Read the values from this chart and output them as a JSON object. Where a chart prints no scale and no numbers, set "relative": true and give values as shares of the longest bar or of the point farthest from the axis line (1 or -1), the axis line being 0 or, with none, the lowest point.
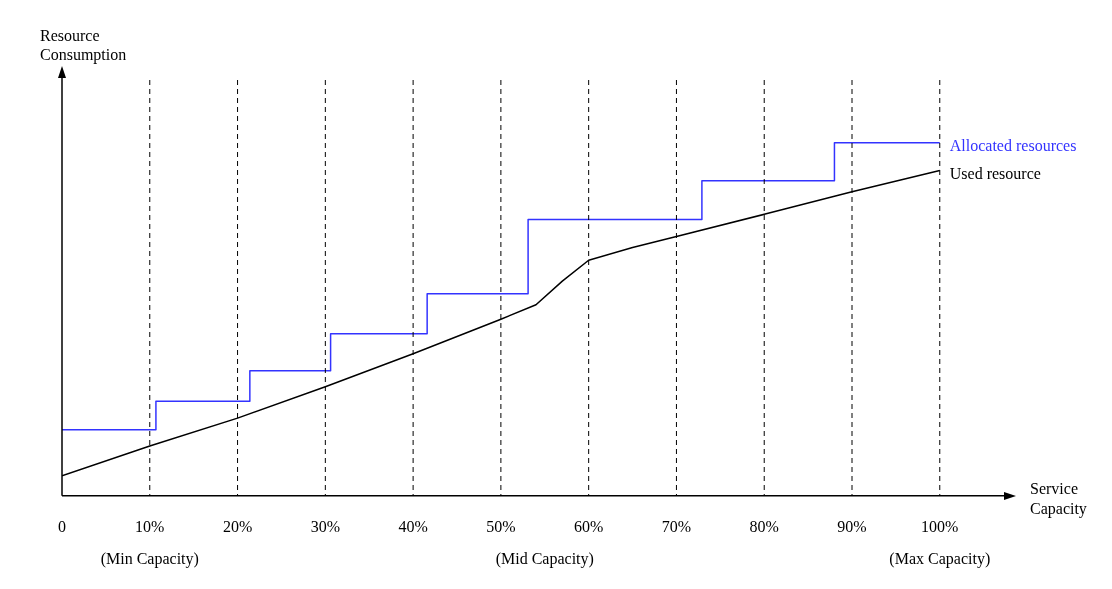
{
  "chart_data": {
    "type": "line",
    "relative": true,
    "xlabel": "Service Capacity",
    "ylabel": "Resource Consumption",
    "xlim": [
      0,
      108
    ],
    "xticks": [
      {
        "value": 0,
        "label": "0"
      },
      {
        "value": 10,
        "label": "10%"
      },
      {
        "value": 20,
        "label": "20%"
      },
      {
        "value": 30,
        "label": "30%"
      },
      {
        "value": 40,
        "label": "40%"
      },
      {
        "value": 50,
        "label": "50%"
      },
      {
        "value": 60,
        "label": "60%"
      },
      {
        "value": 70,
        "label": "70%"
      },
      {
        "value": 80,
        "label": "80%"
      },
      {
        "value": 90,
        "label": "90%"
      },
      {
        "value": 100,
        "label": "100%"
      }
    ],
    "series": [
      {
        "name": "Allocated resources",
        "type": "step",
        "color": "#3333ff",
        "x": [
          0,
          10.7,
          21.4,
          30.6,
          41.6,
          53.1,
          72.9,
          88,
          100
        ],
        "values": [
          0.187,
          0.268,
          0.354,
          0.459,
          0.572,
          0.782,
          0.892,
          1,
          1
        ]
      },
      {
        "name": "Used resource",
        "type": "line",
        "color": "#000000",
        "x": [
          0,
          10,
          20,
          30,
          40,
          50,
          54,
          57,
          60,
          65,
          70,
          80,
          90,
          100
        ],
        "values": [
          0.057,
          0.141,
          0.22,
          0.309,
          0.402,
          0.5,
          0.541,
          0.608,
          0.667,
          0.703,
          0.734,
          0.797,
          0.861,
          0.921
        ]
      }
    ],
    "ref_lines": [
      {
        "axis": "x",
        "value": 10,
        "line_style": "dashed",
        "color": "#000000"
      },
      {
        "axis": "x",
        "value": 20,
        "line_style": "dashed",
        "color": "#000000"
      },
      {
        "axis": "x",
        "value": 30,
        "line_style": "dashed",
        "color": "#000000"
      },
      {
        "axis": "x",
        "value": 40,
        "line_style": "dashed",
        "color": "#000000"
      },
      {
        "axis": "x",
        "value": 50,
        "line_style": "dashed",
        "color": "#000000"
      },
      {
        "axis": "x",
        "value": 60,
        "line_style": "dashed",
        "color": "#000000"
      },
      {
        "axis": "x",
        "value": 70,
        "line_style": "dashed",
        "color": "#000000"
      },
      {
        "axis": "x",
        "value": 80,
        "line_style": "dashed",
        "color": "#000000"
      },
      {
        "axis": "x",
        "value": 90,
        "line_style": "dashed",
        "color": "#000000"
      },
      {
        "axis": "x",
        "value": 100,
        "line_style": "dashed",
        "color": "#000000"
      }
    ],
    "annotations": [
      "(Min Capacity)",
      "(Mid Capacity)",
      "(Max Capacity)"
    ],
    "legend": false,
    "grid": false,
    "marker": "none"
  }
}
